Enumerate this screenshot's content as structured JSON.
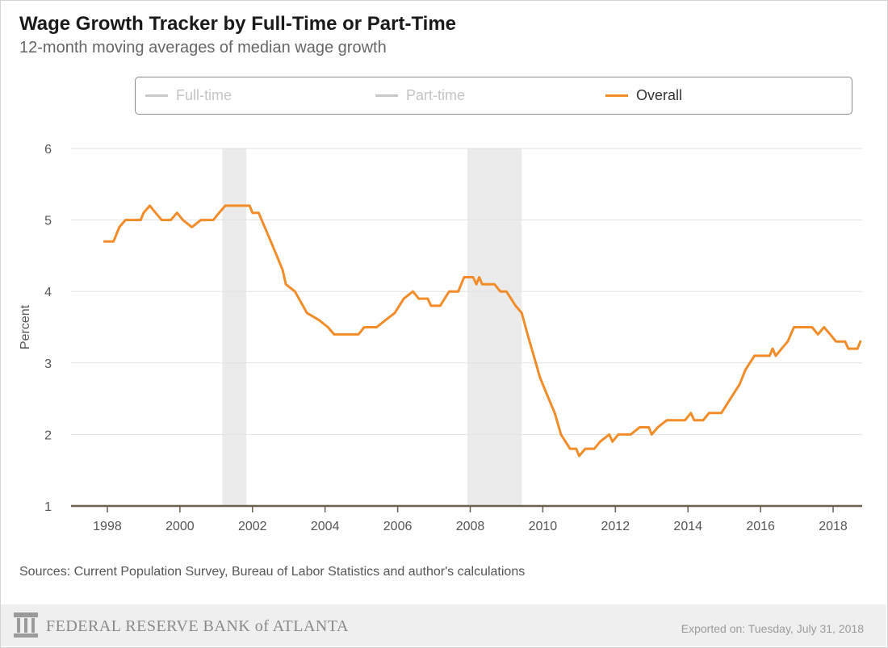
{
  "header": {
    "title": "Wage Growth Tracker by Full-Time or Part-Time",
    "subtitle": "12-month moving averages of median wage growth"
  },
  "legend": [
    {
      "label": "Full-time",
      "active": false,
      "color": "#c8c8c8"
    },
    {
      "label": "Part-time",
      "active": false,
      "color": "#c8c8c8"
    },
    {
      "label": "Overall",
      "active": true,
      "color": "#f28c28"
    }
  ],
  "chart_data": {
    "type": "line",
    "ylabel": "Percent",
    "xlabel": "",
    "ylim": [
      1,
      6
    ],
    "yticks": [
      "1",
      "2",
      "3",
      "4",
      "5",
      "6"
    ],
    "xlim": [
      1997.0,
      2018.8
    ],
    "xticks": [
      "1998",
      "2000",
      "2002",
      "2004",
      "2006",
      "2008",
      "2010",
      "2012",
      "2014",
      "2016",
      "2018"
    ],
    "grid": true,
    "recessions": [
      [
        2001.17,
        2001.83
      ],
      [
        2007.92,
        2009.42
      ]
    ],
    "series": [
      {
        "name": "Overall",
        "color": "#f28c28",
        "points": [
          [
            1997.92,
            4.7
          ],
          [
            1998.17,
            4.7
          ],
          [
            1998.33,
            4.9
          ],
          [
            1998.5,
            5.0
          ],
          [
            1998.92,
            5.0
          ],
          [
            1999.0,
            5.1
          ],
          [
            1999.17,
            5.2
          ],
          [
            1999.33,
            5.1
          ],
          [
            1999.5,
            5.0
          ],
          [
            1999.75,
            5.0
          ],
          [
            1999.92,
            5.1
          ],
          [
            2000.08,
            5.0
          ],
          [
            2000.33,
            4.9
          ],
          [
            2000.58,
            5.0
          ],
          [
            2000.92,
            5.0
          ],
          [
            2001.08,
            5.1
          ],
          [
            2001.25,
            5.2
          ],
          [
            2001.92,
            5.2
          ],
          [
            2002.0,
            5.1
          ],
          [
            2002.17,
            5.1
          ],
          [
            2002.42,
            4.8
          ],
          [
            2002.67,
            4.5
          ],
          [
            2002.83,
            4.3
          ],
          [
            2002.92,
            4.1
          ],
          [
            2003.17,
            4.0
          ],
          [
            2003.5,
            3.7
          ],
          [
            2003.83,
            3.6
          ],
          [
            2004.08,
            3.5
          ],
          [
            2004.25,
            3.4
          ],
          [
            2004.92,
            3.4
          ],
          [
            2005.08,
            3.5
          ],
          [
            2005.42,
            3.5
          ],
          [
            2005.67,
            3.6
          ],
          [
            2005.92,
            3.7
          ],
          [
            2006.17,
            3.9
          ],
          [
            2006.42,
            4.0
          ],
          [
            2006.58,
            3.9
          ],
          [
            2006.83,
            3.9
          ],
          [
            2006.92,
            3.8
          ],
          [
            2007.17,
            3.8
          ],
          [
            2007.42,
            4.0
          ],
          [
            2007.67,
            4.0
          ],
          [
            2007.83,
            4.2
          ],
          [
            2008.08,
            4.2
          ],
          [
            2008.17,
            4.1
          ],
          [
            2008.25,
            4.2
          ],
          [
            2008.33,
            4.1
          ],
          [
            2008.67,
            4.1
          ],
          [
            2008.83,
            4.0
          ],
          [
            2009.0,
            4.0
          ],
          [
            2009.25,
            3.8
          ],
          [
            2009.42,
            3.7
          ],
          [
            2009.58,
            3.4
          ],
          [
            2009.75,
            3.1
          ],
          [
            2009.92,
            2.8
          ],
          [
            2010.08,
            2.6
          ],
          [
            2010.33,
            2.3
          ],
          [
            2010.5,
            2.0
          ],
          [
            2010.75,
            1.8
          ],
          [
            2010.92,
            1.8
          ],
          [
            2011.0,
            1.7
          ],
          [
            2011.17,
            1.8
          ],
          [
            2011.42,
            1.8
          ],
          [
            2011.58,
            1.9
          ],
          [
            2011.83,
            2.0
          ],
          [
            2011.92,
            1.9
          ],
          [
            2012.08,
            2.0
          ],
          [
            2012.42,
            2.0
          ],
          [
            2012.67,
            2.1
          ],
          [
            2012.92,
            2.1
          ],
          [
            2013.0,
            2.0
          ],
          [
            2013.17,
            2.1
          ],
          [
            2013.42,
            2.2
          ],
          [
            2013.92,
            2.2
          ],
          [
            2014.08,
            2.3
          ],
          [
            2014.17,
            2.2
          ],
          [
            2014.42,
            2.2
          ],
          [
            2014.58,
            2.3
          ],
          [
            2014.92,
            2.3
          ],
          [
            2015.17,
            2.5
          ],
          [
            2015.42,
            2.7
          ],
          [
            2015.58,
            2.9
          ],
          [
            2015.83,
            3.1
          ],
          [
            2016.25,
            3.1
          ],
          [
            2016.33,
            3.2
          ],
          [
            2016.42,
            3.1
          ],
          [
            2016.58,
            3.2
          ],
          [
            2016.75,
            3.3
          ],
          [
            2016.92,
            3.5
          ],
          [
            2017.42,
            3.5
          ],
          [
            2017.58,
            3.4
          ],
          [
            2017.75,
            3.5
          ],
          [
            2017.92,
            3.4
          ],
          [
            2018.08,
            3.3
          ],
          [
            2018.33,
            3.3
          ],
          [
            2018.42,
            3.2
          ],
          [
            2018.67,
            3.2
          ],
          [
            2018.75,
            3.3
          ]
        ]
      }
    ]
  },
  "sources": "Sources: Current Population Survey, Bureau of Labor Statistics and author's calculations",
  "footer": {
    "org": "FEDERAL RESERVE BANK of ATLANTA",
    "exported": "Exported on: Tuesday, July 31, 2018"
  }
}
